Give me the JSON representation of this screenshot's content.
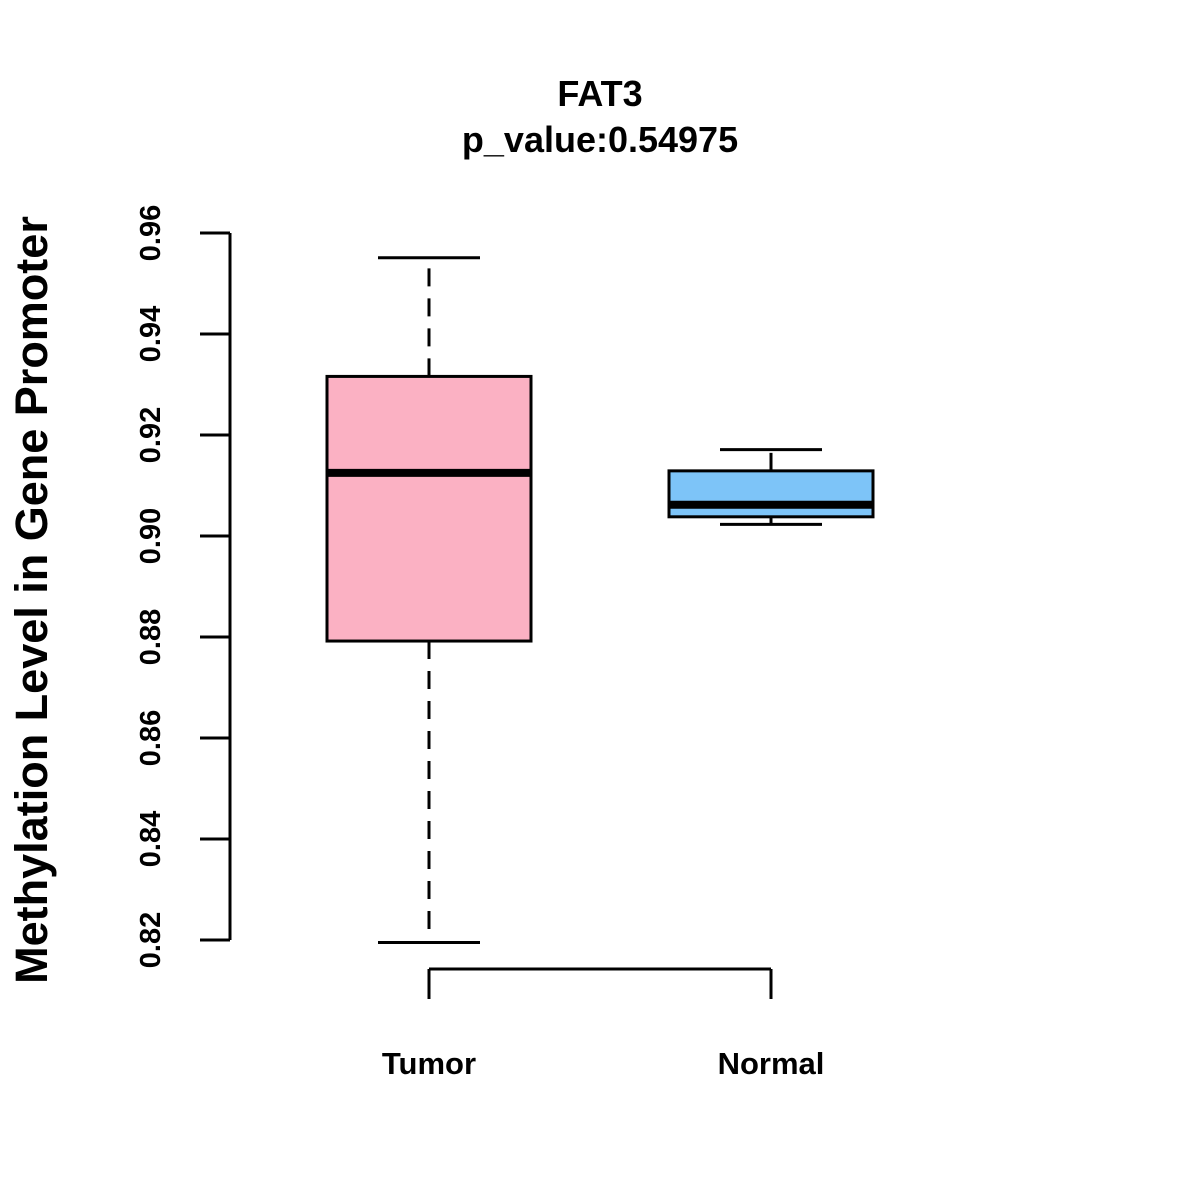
{
  "chart_data": {
    "type": "box",
    "title": "FAT3",
    "subtitle": "p_value:0.54975",
    "ylabel": "Methylation Level in Gene Promoter",
    "xlabel": "",
    "ylim": [
      0.82,
      0.96
    ],
    "yticks": [
      "0.82",
      "0.84",
      "0.86",
      "0.88",
      "0.90",
      "0.92",
      "0.94",
      "0.96"
    ],
    "grid": false,
    "categories": [
      "Tumor",
      "Normal"
    ],
    "boxes": [
      {
        "category": "Tumor",
        "whisker_low": 0.8195,
        "q1": 0.8792,
        "median": 0.9125,
        "q3": 0.9316,
        "whisker_high": 0.9551,
        "color": "#FBB1C3"
      },
      {
        "category": "Normal",
        "whisker_low": 0.9023,
        "q1": 0.9038,
        "median": 0.9062,
        "q3": 0.9129,
        "whisker_high": 0.9171,
        "color": "#7DC4F8"
      }
    ]
  }
}
